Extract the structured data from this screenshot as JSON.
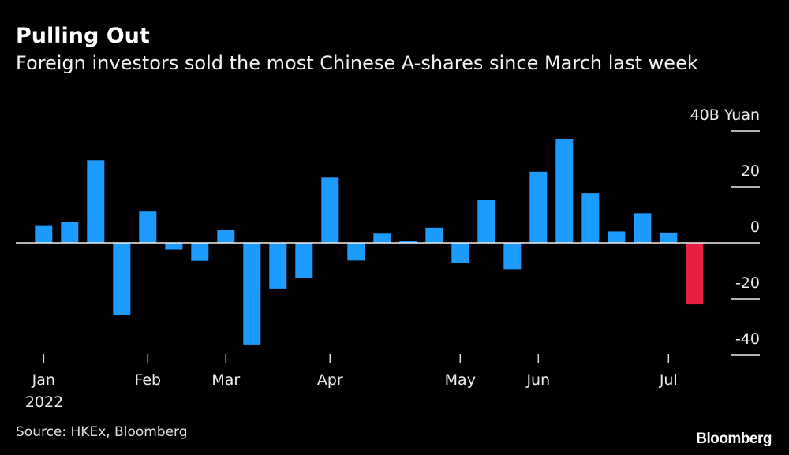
{
  "title": "Pulling Out",
  "subtitle": "Foreign investors sold the most Chinese A-shares since March last week",
  "source": "Source: HKEx, Bloomberg",
  "logo": "Bloomberg",
  "colors": {
    "positive": "#1e9bff",
    "highlight": "#e8203f",
    "background": "#000000"
  },
  "chart_data": {
    "type": "bar",
    "title": "Pulling Out",
    "ylabel": "40B Yuan",
    "unit_label": "40B Yuan",
    "ylim": [
      -40,
      40
    ],
    "yticks": [
      40,
      20,
      0,
      -20,
      -40
    ],
    "ytick_labels": [
      "40B Yuan",
      "20",
      "0",
      "-20",
      "-40"
    ],
    "xtick_labels": [
      "Jan",
      "Feb",
      "Mar",
      "Apr",
      "May",
      "Jun",
      "Jul"
    ],
    "xtick_weeks": [
      0,
      4,
      7,
      11,
      16,
      19,
      24
    ],
    "year_label": "2022",
    "grid": false,
    "values": [
      6.3,
      7.6,
      29.5,
      -25.9,
      11.2,
      -2.4,
      -6.4,
      4.5,
      -36.3,
      -16.3,
      -12.5,
      23.3,
      -6.3,
      3.3,
      0.7,
      5.4,
      -7.1,
      15.4,
      -9.4,
      25.4,
      37.2,
      17.7,
      4.1,
      10.6,
      3.7,
      -22.0
    ],
    "highlight_index": 25
  }
}
